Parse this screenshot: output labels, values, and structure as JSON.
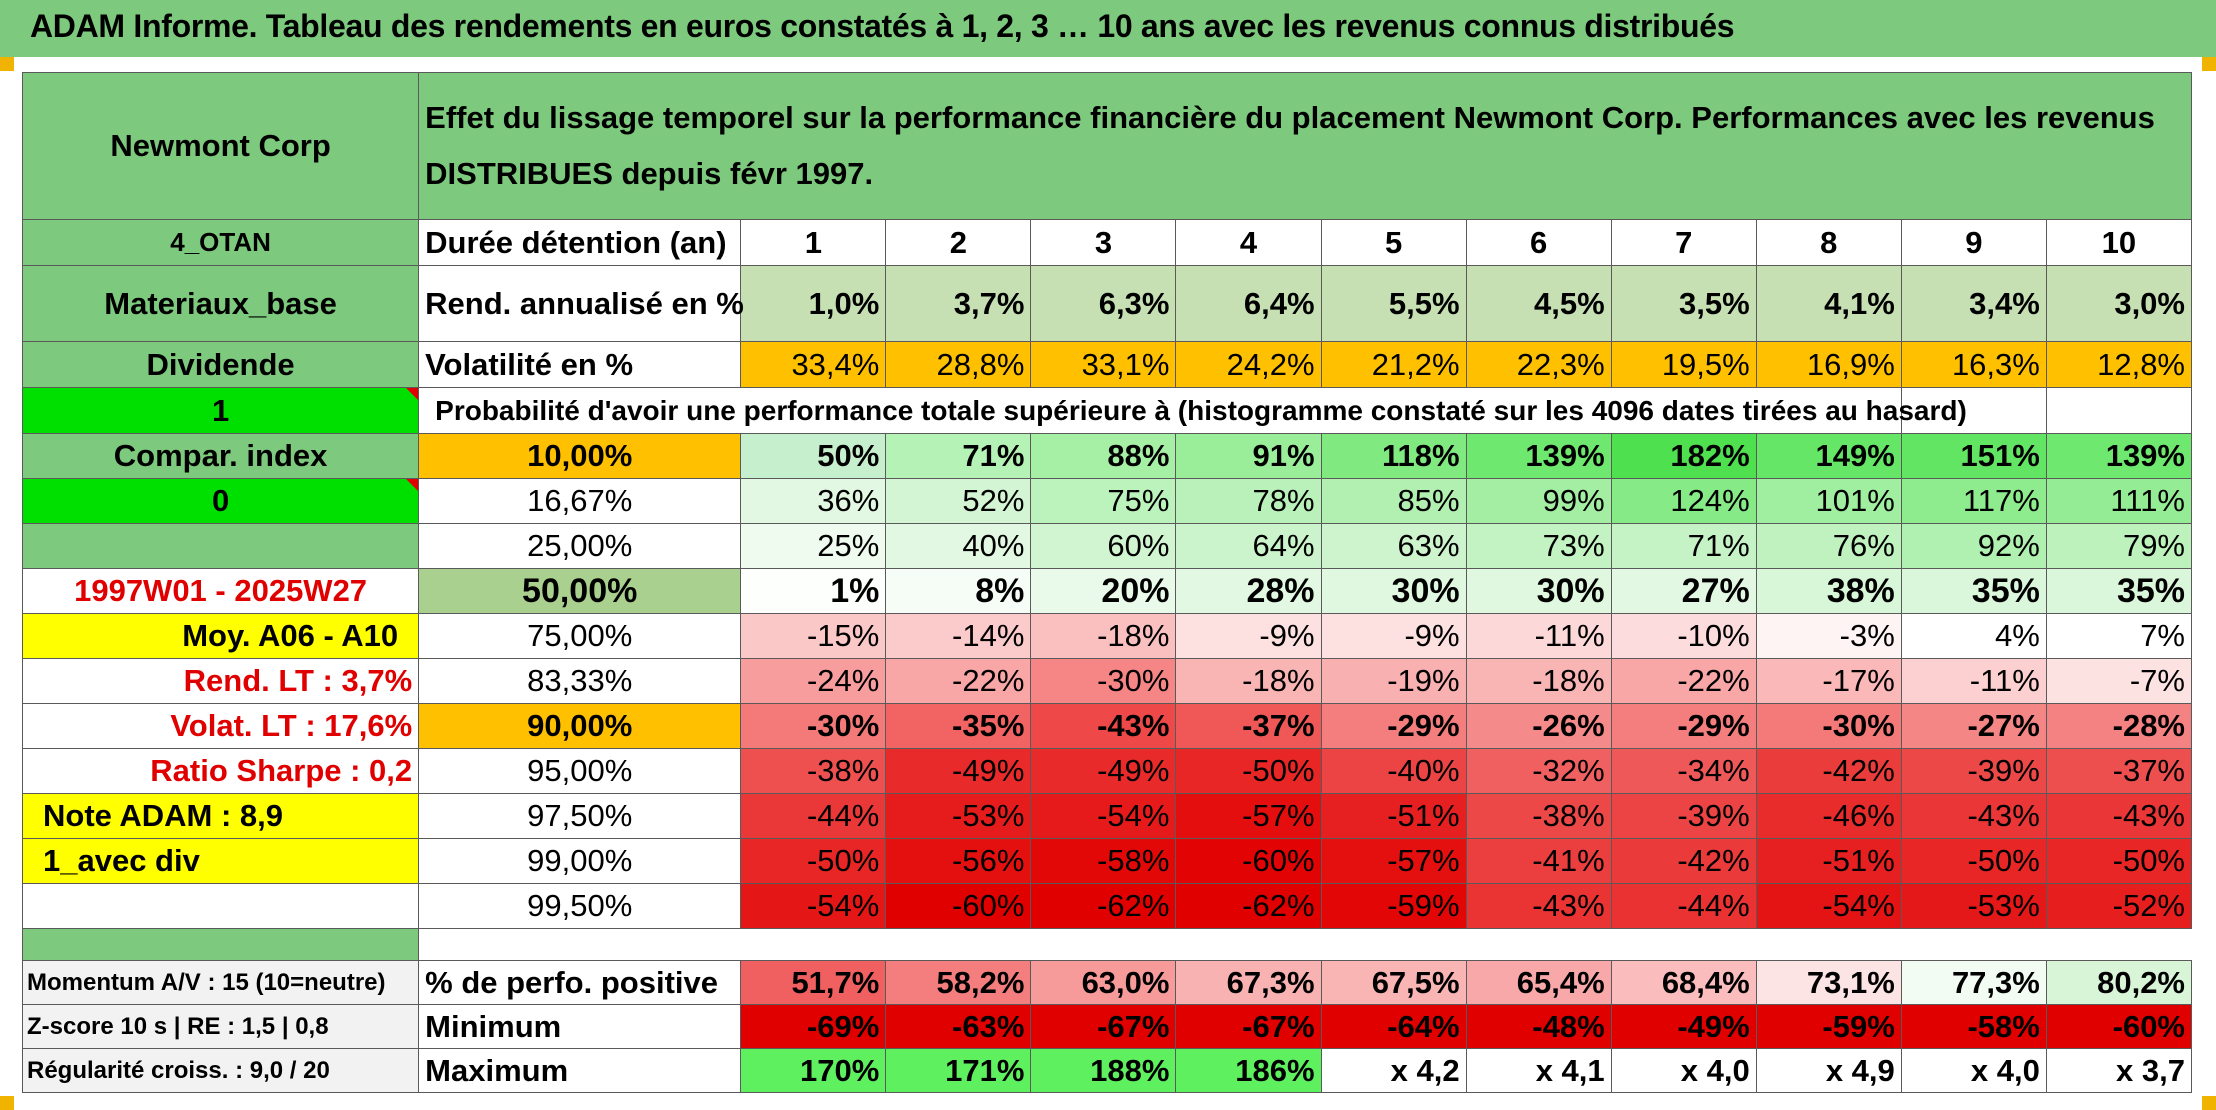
{
  "title": "ADAM Informe. Tableau des rendements en euros constatés à 1, 2, 3 … 10 ans avec les revenus connus distribués",
  "header": {
    "name": "Newmont Corp",
    "description_line1": "Effet du lissage temporel sur la performance financière du placement Newmont Corp. Performances avec les revenus",
    "description_line2": "DISTRIBUES depuis févr 1997."
  },
  "left": {
    "code": "4_OTAN",
    "sector": "Materiaux_base",
    "dividend": "Dividende",
    "flag1": "1",
    "compar": "Compar. index",
    "flag0": "0",
    "period": "1997W01 - 2025W27",
    "moy": "Moy. A06 - A10",
    "rend_lt": "Rend. LT :   3,7%",
    "volat_lt": "Volat. LT :   17,6%",
    "sharpe": "Ratio Sharpe :    0,2",
    "note": "Note ADAM : 8,9",
    "avec_div": "1_avec div"
  },
  "labels": {
    "duree": "Durée détention (an)",
    "rend": "Rend. annualisé en %",
    "vol": "Volatilité en %",
    "proba": "Probabilité d'avoir une performance totale supérieure à (histogramme constaté sur les 4096 dates tirées au hasard)"
  },
  "years": [
    "1",
    "2",
    "3",
    "4",
    "5",
    "6",
    "7",
    "8",
    "9",
    "10"
  ],
  "rend": [
    "1,0%",
    "3,7%",
    "6,3%",
    "6,4%",
    "5,5%",
    "4,5%",
    "3,5%",
    "4,1%",
    "3,4%",
    "3,0%"
  ],
  "vol": [
    "33,4%",
    "28,8%",
    "33,1%",
    "24,2%",
    "21,2%",
    "22,3%",
    "19,5%",
    "16,9%",
    "16,3%",
    "12,8%"
  ],
  "quantiles": [
    {
      "p": "10,00%",
      "v": [
        "50%",
        "71%",
        "88%",
        "91%",
        "118%",
        "139%",
        "182%",
        "149%",
        "151%",
        "139%"
      ]
    },
    {
      "p": "16,67%",
      "v": [
        "36%",
        "52%",
        "75%",
        "78%",
        "85%",
        "99%",
        "124%",
        "101%",
        "117%",
        "111%"
      ]
    },
    {
      "p": "25,00%",
      "v": [
        "25%",
        "40%",
        "60%",
        "64%",
        "63%",
        "73%",
        "71%",
        "76%",
        "92%",
        "79%"
      ]
    },
    {
      "p": "50,00%",
      "v": [
        "1%",
        "8%",
        "20%",
        "28%",
        "30%",
        "30%",
        "27%",
        "38%",
        "35%",
        "35%"
      ]
    },
    {
      "p": "75,00%",
      "v": [
        "-15%",
        "-14%",
        "-18%",
        "-9%",
        "-9%",
        "-11%",
        "-10%",
        "-3%",
        "4%",
        "7%"
      ]
    },
    {
      "p": "83,33%",
      "v": [
        "-24%",
        "-22%",
        "-30%",
        "-18%",
        "-19%",
        "-18%",
        "-22%",
        "-17%",
        "-11%",
        "-7%"
      ]
    },
    {
      "p": "90,00%",
      "v": [
        "-30%",
        "-35%",
        "-43%",
        "-37%",
        "-29%",
        "-26%",
        "-29%",
        "-30%",
        "-27%",
        "-28%"
      ]
    },
    {
      "p": "95,00%",
      "v": [
        "-38%",
        "-49%",
        "-49%",
        "-50%",
        "-40%",
        "-32%",
        "-34%",
        "-42%",
        "-39%",
        "-37%"
      ]
    },
    {
      "p": "97,50%",
      "v": [
        "-44%",
        "-53%",
        "-54%",
        "-57%",
        "-51%",
        "-38%",
        "-39%",
        "-46%",
        "-43%",
        "-43%"
      ]
    },
    {
      "p": "99,00%",
      "v": [
        "-50%",
        "-56%",
        "-58%",
        "-60%",
        "-57%",
        "-41%",
        "-42%",
        "-51%",
        "-50%",
        "-50%"
      ]
    },
    {
      "p": "99,50%",
      "v": [
        "-54%",
        "-60%",
        "-62%",
        "-62%",
        "-59%",
        "-43%",
        "-44%",
        "-54%",
        "-53%",
        "-52%"
      ]
    }
  ],
  "bottom": {
    "momentum": "Momentum A/V : 15 (10=neutre)",
    "zscore": "Z-score 10 s | RE : 1,5 | 0,8",
    "regularite": "Régularité croiss. : 9,0 / 20",
    "pos_label": "% de perfo. positive",
    "min_label": "Minimum",
    "max_label": "Maximum",
    "positive": [
      "51,7%",
      "58,2%",
      "63,0%",
      "67,3%",
      "67,5%",
      "65,4%",
      "68,4%",
      "73,1%",
      "77,3%",
      "80,2%"
    ],
    "minimum": [
      "-69%",
      "-63%",
      "-67%",
      "-67%",
      "-64%",
      "-48%",
      "-49%",
      "-59%",
      "-58%",
      "-60%"
    ],
    "maximum": [
      "170%",
      "171%",
      "188%",
      "186%",
      "x 4,2",
      "x 4,1",
      "x 4,0",
      "x 4,9",
      "x 4,0",
      "x 3,7"
    ]
  },
  "colors": {
    "header_green": "#7dc97d",
    "orange": "#ffc000",
    "bright_green": "#00e000",
    "yellow": "#ffff00",
    "red_text": "#e00000"
  }
}
